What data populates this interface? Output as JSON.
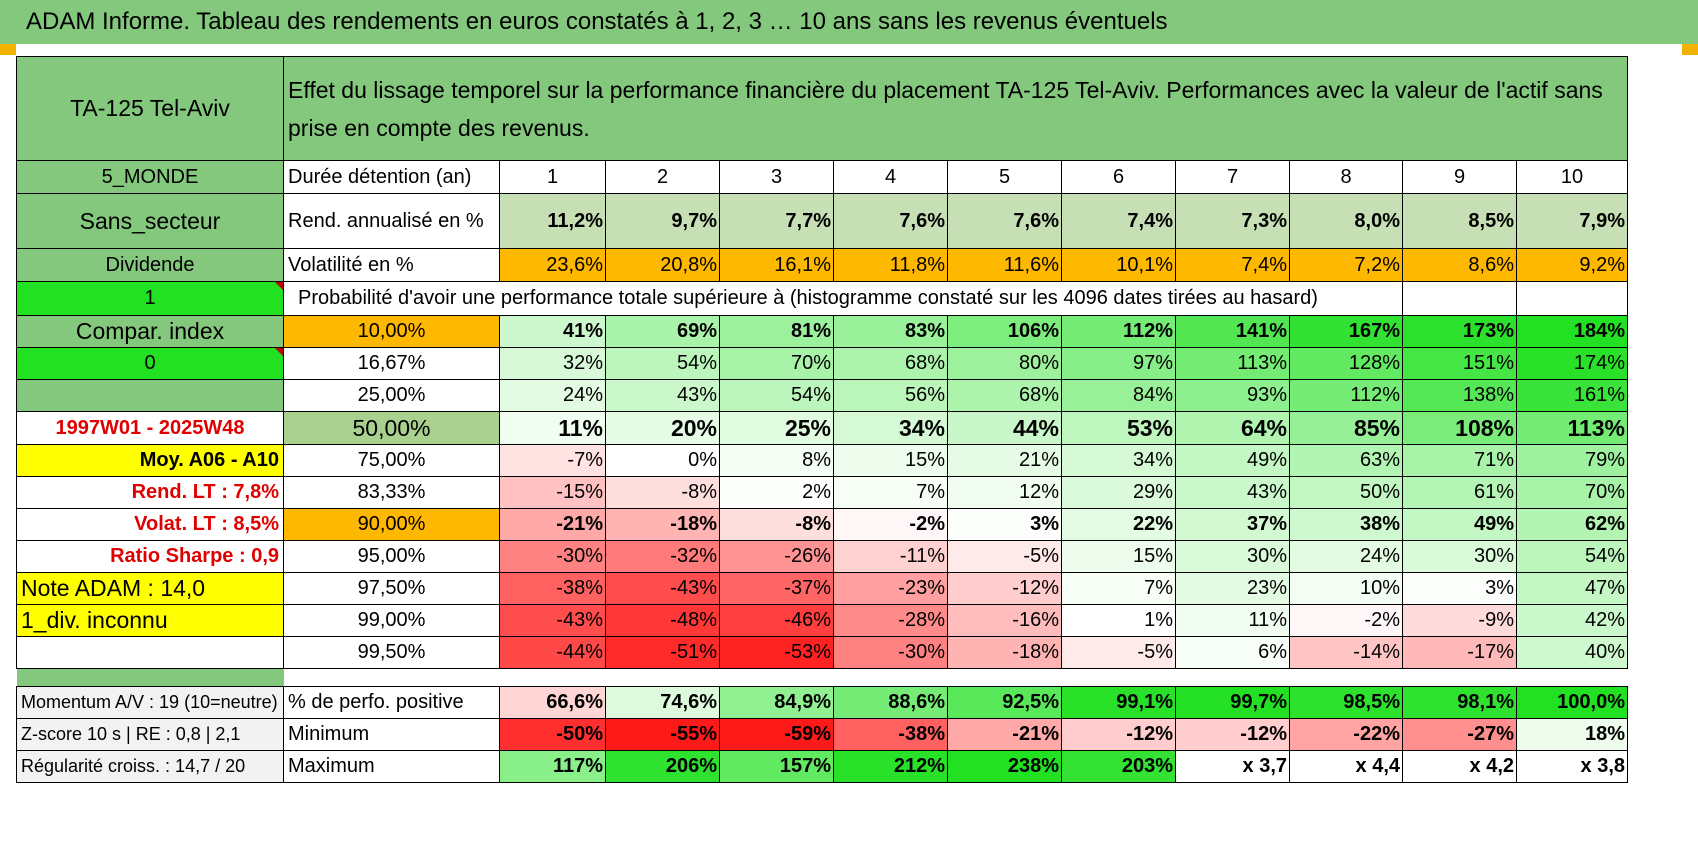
{
  "banner": "ADAM Informe. Tableau des rendements en euros constatés à 1, 2, 3 … 10 ans sans les revenus éventuels",
  "header": {
    "asset": "TA-125 Tel-Aviv",
    "description": "Effet du lissage temporel sur la performance financière du placement TA-125 Tel-Aviv. Performances avec la valeur de l'actif sans prise en compte des revenus."
  },
  "years_label": "Durée détention (an)",
  "years": [
    "1",
    "2",
    "3",
    "4",
    "5",
    "6",
    "7",
    "8",
    "9",
    "10"
  ],
  "side": [
    "5_MONDE",
    "Sans_secteur",
    "Dividende",
    "1",
    "Compar. index",
    "0",
    "",
    "1997W01 - 2025W48",
    "Moy. A06 - A10",
    "Rend. LT :   7,8%",
    "Volat. LT :   8,5%",
    "Ratio Sharpe :    0,9",
    "Note ADAM : 14,0",
    "1_div. inconnu",
    ""
  ],
  "rend": {
    "label": "Rend. annualisé en %",
    "values": [
      "11,2%",
      "9,7%",
      "7,7%",
      "7,6%",
      "7,6%",
      "7,4%",
      "7,3%",
      "8,0%",
      "8,5%",
      "7,9%"
    ]
  },
  "vol": {
    "label": "Volatilité en %",
    "values": [
      "23,6%",
      "20,8%",
      "16,1%",
      "11,8%",
      "11,6%",
      "10,1%",
      "7,4%",
      "7,2%",
      "8,6%",
      "9,2%"
    ]
  },
  "prob_title": "Probabilité d'avoir une performance totale supérieure à (histogramme constaté sur les 4096 dates tirées au hasard)",
  "quantiles": [
    {
      "p": "10,00%",
      "v": [
        "41%",
        "69%",
        "81%",
        "83%",
        "106%",
        "112%",
        "141%",
        "167%",
        "173%",
        "184%"
      ]
    },
    {
      "p": "16,67%",
      "v": [
        "32%",
        "54%",
        "70%",
        "68%",
        "80%",
        "97%",
        "113%",
        "128%",
        "151%",
        "174%"
      ]
    },
    {
      "p": "25,00%",
      "v": [
        "24%",
        "43%",
        "54%",
        "56%",
        "68%",
        "84%",
        "93%",
        "112%",
        "138%",
        "161%"
      ]
    },
    {
      "p": "50,00%",
      "v": [
        "11%",
        "20%",
        "25%",
        "34%",
        "44%",
        "53%",
        "64%",
        "85%",
        "108%",
        "113%"
      ]
    },
    {
      "p": "75,00%",
      "v": [
        "-7%",
        "0%",
        "8%",
        "15%",
        "21%",
        "34%",
        "49%",
        "63%",
        "71%",
        "79%"
      ]
    },
    {
      "p": "83,33%",
      "v": [
        "-15%",
        "-8%",
        "2%",
        "7%",
        "12%",
        "29%",
        "43%",
        "50%",
        "61%",
        "70%"
      ]
    },
    {
      "p": "90,00%",
      "v": [
        "-21%",
        "-18%",
        "-8%",
        "-2%",
        "3%",
        "22%",
        "37%",
        "38%",
        "49%",
        "62%"
      ]
    },
    {
      "p": "95,00%",
      "v": [
        "-30%",
        "-32%",
        "-26%",
        "-11%",
        "-5%",
        "15%",
        "30%",
        "24%",
        "30%",
        "54%"
      ]
    },
    {
      "p": "97,50%",
      "v": [
        "-38%",
        "-43%",
        "-37%",
        "-23%",
        "-12%",
        "7%",
        "23%",
        "10%",
        "3%",
        "47%"
      ]
    },
    {
      "p": "99,00%",
      "v": [
        "-43%",
        "-48%",
        "-46%",
        "-28%",
        "-16%",
        "1%",
        "11%",
        "-2%",
        "-9%",
        "42%"
      ]
    },
    {
      "p": "99,50%",
      "v": [
        "-44%",
        "-51%",
        "-53%",
        "-30%",
        "-18%",
        "-5%",
        "6%",
        "-14%",
        "-17%",
        "40%"
      ]
    }
  ],
  "bottom": [
    {
      "side": "Momentum A/V : 19 (10=neutre)",
      "label": "% de perfo. positive",
      "v": [
        "66,6%",
        "74,6%",
        "84,9%",
        "88,6%",
        "92,5%",
        "99,1%",
        "99,7%",
        "98,5%",
        "98,1%",
        "100,0%"
      ]
    },
    {
      "side": "Z-score 10 s | RE : 0,8 | 2,1",
      "label": "Minimum",
      "v": [
        "-50%",
        "-55%",
        "-59%",
        "-38%",
        "-21%",
        "-12%",
        "-12%",
        "-22%",
        "-27%",
        "18%"
      ]
    },
    {
      "side": "Régularité croiss. : 14,7 / 20",
      "label": "Maximum",
      "v": [
        "117%",
        "206%",
        "157%",
        "212%",
        "238%",
        "203%",
        "x 3,7",
        "x 4,4",
        "x 4,2",
        "x 3,8"
      ]
    }
  ],
  "colors": {
    "header_green": "#84c87e",
    "bright_green": "#22e022",
    "yellow": "#ffff00",
    "orange": "#ffb800",
    "rend_green": "#c6dfb5",
    "median_green": "#a9d08e",
    "red_text": "#e00000"
  }
}
